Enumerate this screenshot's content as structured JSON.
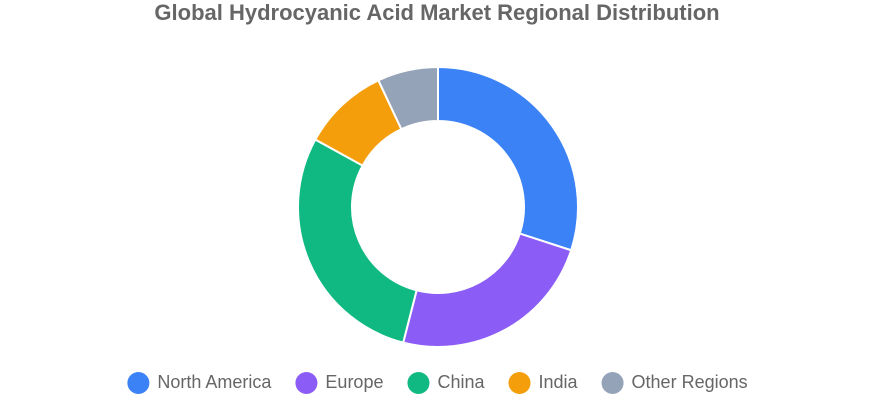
{
  "chart_data": {
    "type": "donut",
    "title": "Global Hydrocyanic Acid Market Regional Distribution",
    "categories": [
      "North America",
      "Europe",
      "China",
      "India",
      "Other Regions"
    ],
    "values": [
      30,
      24,
      29,
      10,
      7
    ],
    "colors": [
      "#3b82f6",
      "#8b5cf6",
      "#10b981",
      "#f59e0b",
      "#94a3b8"
    ],
    "legend": "bottom"
  }
}
